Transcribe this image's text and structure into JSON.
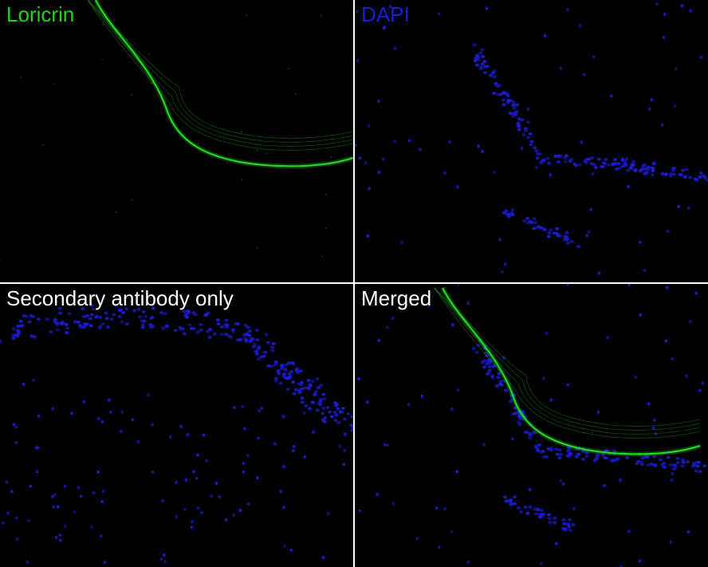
{
  "panels": [
    {
      "label": "Loricrin",
      "label_color": "#1ed51e",
      "channel": "green"
    },
    {
      "label": "DAPI",
      "label_color": "#1a1ae0",
      "channel": "blue"
    },
    {
      "label": "Secondary antibody only",
      "label_color": "#ffffff",
      "channel": "blue-control"
    },
    {
      "label": "Merged",
      "label_color": "#ffffff",
      "channel": "merged"
    }
  ],
  "colors": {
    "green_signal": "#22e022",
    "blue_signal": "#1c1cd8",
    "divider": "#ffffff",
    "background": "#000000"
  }
}
